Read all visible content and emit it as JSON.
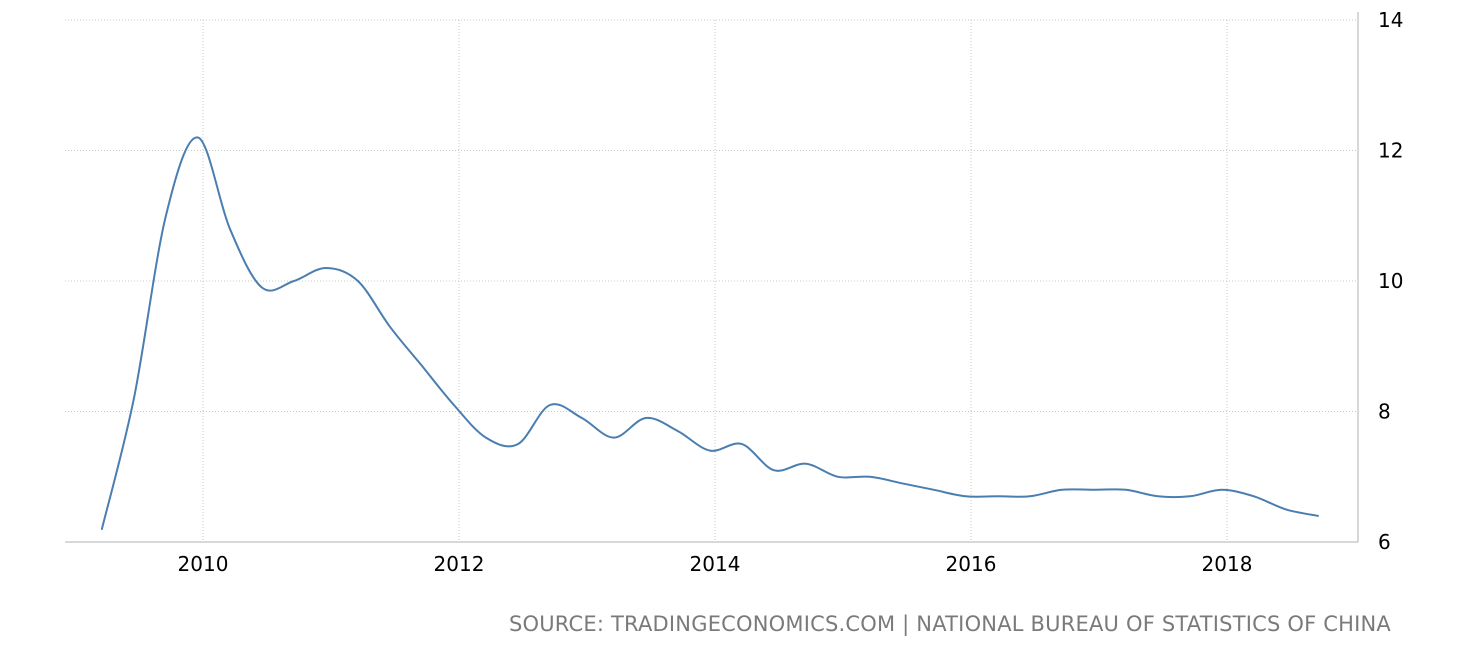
{
  "chart_data": {
    "type": "line",
    "title": "",
    "xlabel": "",
    "ylabel": "",
    "x_ticks": [
      "2010",
      "2012",
      "2014",
      "2016",
      "2018"
    ],
    "y_ticks": [
      "6",
      "8",
      "10",
      "12",
      "14"
    ],
    "ylim": [
      6,
      14
    ],
    "xlim": [
      2009.0,
      2018.9
    ],
    "y_axis_side": "right",
    "grid": true,
    "line_color": "#4a7eb0",
    "x": [
      2009.21,
      2009.46,
      2009.71,
      2009.96,
      2010.21,
      2010.46,
      2010.71,
      2010.96,
      2011.21,
      2011.46,
      2011.71,
      2011.96,
      2012.21,
      2012.46,
      2012.71,
      2012.96,
      2013.21,
      2013.46,
      2013.71,
      2013.96,
      2014.21,
      2014.46,
      2014.71,
      2014.96,
      2015.21,
      2015.46,
      2015.71,
      2015.96,
      2016.21,
      2016.46,
      2016.71,
      2016.96,
      2017.21,
      2017.46,
      2017.71,
      2017.96,
      2018.21,
      2018.46,
      2018.71
    ],
    "y": [
      6.2,
      8.2,
      11.0,
      12.2,
      10.8,
      9.9,
      10.0,
      10.2,
      10.0,
      9.3,
      8.7,
      8.1,
      7.6,
      7.5,
      8.1,
      7.9,
      7.6,
      7.9,
      7.7,
      7.4,
      7.5,
      7.1,
      7.2,
      7.0,
      7.0,
      6.9,
      6.8,
      6.7,
      6.7,
      6.7,
      6.8,
      6.8,
      6.8,
      6.7,
      6.7,
      6.8,
      6.7,
      6.5,
      6.4
    ]
  },
  "source_text": "SOURCE: TRADINGECONOMICS.COM | NATIONAL BUREAU OF STATISTICS OF CHINA"
}
